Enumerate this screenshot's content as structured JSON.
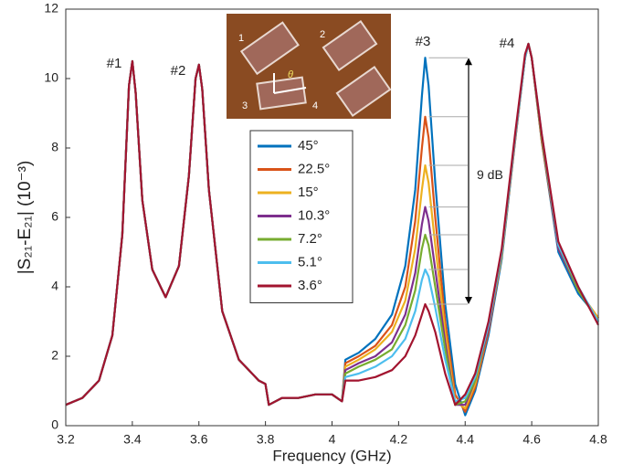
{
  "chart_data": {
    "type": "line",
    "x_label": "Frequency (GHz)",
    "y_label": "|S₂₁-E₂₁| (10⁻³)",
    "xlim": [
      3.2,
      4.8
    ],
    "xticks": [
      3.2,
      3.4,
      3.6,
      3.8,
      {
        "value": 4,
        "label": "4"
      },
      4.2,
      4.4,
      4.6,
      4.8
    ],
    "ylim": [
      0,
      12
    ],
    "yticks": [
      0,
      2,
      4,
      6,
      8,
      10,
      12
    ],
    "peak_labels": [
      "#1",
      "#2",
      "#3",
      "#4"
    ],
    "arrow_label": "9 dB",
    "inset_labels": [
      "1",
      "2",
      "3",
      "4",
      "θ"
    ],
    "x": [
      3.2,
      3.25,
      3.3,
      3.34,
      3.37,
      3.39,
      3.4,
      3.41,
      3.43,
      3.46,
      3.5,
      3.54,
      3.57,
      3.59,
      3.6,
      3.61,
      3.63,
      3.67,
      3.72,
      3.78,
      3.8,
      3.81,
      3.85,
      3.9,
      3.95,
      4.0,
      4.03,
      4.04,
      4.08,
      4.13,
      4.18,
      4.22,
      4.25,
      4.27,
      4.28,
      4.29,
      4.31,
      4.34,
      4.37,
      4.4,
      4.43,
      4.47,
      4.51,
      4.55,
      4.58,
      4.59,
      4.6,
      4.63,
      4.68,
      4.74,
      4.8
    ],
    "series": [
      {
        "name": "45°",
        "color": "#0072BD",
        "values": [
          0.6,
          0.8,
          1.3,
          2.6,
          5.5,
          9.8,
          10.5,
          9.6,
          6.5,
          4.5,
          3.7,
          4.6,
          7.2,
          10.0,
          10.4,
          9.7,
          6.8,
          3.3,
          1.9,
          1.3,
          1.2,
          0.6,
          0.8,
          0.8,
          0.9,
          0.9,
          0.7,
          1.9,
          2.1,
          2.5,
          3.2,
          4.6,
          6.8,
          9.5,
          10.6,
          9.8,
          7.0,
          3.5,
          1.2,
          0.3,
          1.0,
          2.6,
          4.8,
          8.2,
          10.6,
          11.0,
          10.6,
          8.2,
          5.0,
          3.8,
          3.1
        ]
      },
      {
        "name": "22.5°",
        "color": "#D95319",
        "values": [
          0.6,
          0.8,
          1.3,
          2.6,
          5.5,
          9.8,
          10.5,
          9.6,
          6.5,
          4.5,
          3.7,
          4.6,
          7.2,
          10.0,
          10.4,
          9.7,
          6.8,
          3.3,
          1.9,
          1.3,
          1.2,
          0.6,
          0.8,
          0.8,
          0.9,
          0.9,
          0.7,
          1.8,
          2.0,
          2.3,
          2.9,
          4.0,
          5.9,
          8.0,
          8.9,
          8.3,
          6.0,
          3.0,
          0.9,
          0.4,
          1.1,
          2.7,
          4.9,
          8.2,
          10.6,
          11.0,
          10.6,
          8.2,
          5.1,
          3.9,
          3.1
        ]
      },
      {
        "name": "15°",
        "color": "#EDB120",
        "values": [
          0.6,
          0.8,
          1.3,
          2.6,
          5.5,
          9.8,
          10.5,
          9.6,
          6.5,
          4.5,
          3.7,
          4.6,
          7.2,
          10.0,
          10.4,
          9.7,
          6.8,
          3.3,
          1.9,
          1.3,
          1.2,
          0.6,
          0.8,
          0.8,
          0.9,
          0.9,
          0.7,
          1.7,
          1.9,
          2.2,
          2.7,
          3.6,
          5.1,
          6.8,
          7.5,
          7.0,
          5.2,
          2.7,
          0.7,
          0.5,
          1.2,
          2.8,
          4.9,
          8.3,
          10.6,
          11.0,
          10.6,
          8.3,
          5.1,
          3.9,
          3.1
        ]
      },
      {
        "name": "10.3°",
        "color": "#7E2F8E",
        "values": [
          0.6,
          0.8,
          1.3,
          2.6,
          5.5,
          9.8,
          10.5,
          9.6,
          6.5,
          4.5,
          3.7,
          4.6,
          7.2,
          10.0,
          10.4,
          9.7,
          6.8,
          3.3,
          1.9,
          1.3,
          1.2,
          0.6,
          0.8,
          0.8,
          0.9,
          0.9,
          0.7,
          1.6,
          1.8,
          2.0,
          2.4,
          3.2,
          4.4,
          5.8,
          6.3,
          5.9,
          4.5,
          2.4,
          0.6,
          0.6,
          1.3,
          2.8,
          5.0,
          8.3,
          10.6,
          11.0,
          10.6,
          8.3,
          5.1,
          3.9,
          3.0
        ]
      },
      {
        "name": "7.2°",
        "color": "#77AC30",
        "values": [
          0.6,
          0.8,
          1.3,
          2.6,
          5.5,
          9.8,
          10.5,
          9.6,
          6.5,
          4.5,
          3.7,
          4.6,
          7.2,
          10.0,
          10.4,
          9.7,
          6.8,
          3.3,
          1.9,
          1.3,
          1.2,
          0.6,
          0.8,
          0.8,
          0.9,
          0.9,
          0.7,
          1.5,
          1.7,
          1.9,
          2.2,
          2.9,
          3.9,
          5.1,
          5.5,
          5.2,
          4.0,
          2.2,
          0.6,
          0.7,
          1.3,
          2.9,
          5.0,
          8.3,
          10.6,
          11.0,
          10.6,
          8.3,
          5.2,
          3.9,
          3.0
        ]
      },
      {
        "name": "5.1°",
        "color": "#4DBEEE",
        "values": [
          0.6,
          0.8,
          1.3,
          2.6,
          5.5,
          9.8,
          10.5,
          9.6,
          6.5,
          4.5,
          3.7,
          4.6,
          7.2,
          10.0,
          10.4,
          9.7,
          6.8,
          3.3,
          1.9,
          1.3,
          1.2,
          0.6,
          0.8,
          0.8,
          0.9,
          0.9,
          0.7,
          1.4,
          1.5,
          1.7,
          2.0,
          2.5,
          3.3,
          4.2,
          4.5,
          4.3,
          3.4,
          1.9,
          0.7,
          0.8,
          1.4,
          2.9,
          5.0,
          8.3,
          10.6,
          11.0,
          10.6,
          8.4,
          5.2,
          4.0,
          3.0
        ]
      },
      {
        "name": "3.6°",
        "color": "#A2142F",
        "values": [
          0.6,
          0.8,
          1.3,
          2.6,
          5.5,
          9.8,
          10.5,
          9.6,
          6.5,
          4.5,
          3.7,
          4.6,
          7.2,
          10.0,
          10.4,
          9.7,
          6.8,
          3.3,
          1.9,
          1.3,
          1.2,
          0.6,
          0.8,
          0.8,
          0.9,
          0.9,
          0.7,
          1.3,
          1.3,
          1.4,
          1.6,
          2.0,
          2.6,
          3.2,
          3.5,
          3.3,
          2.7,
          1.5,
          0.6,
          0.9,
          1.5,
          3.0,
          5.1,
          8.4,
          10.7,
          11.0,
          10.6,
          8.4,
          5.3,
          4.0,
          2.9
        ]
      }
    ]
  }
}
